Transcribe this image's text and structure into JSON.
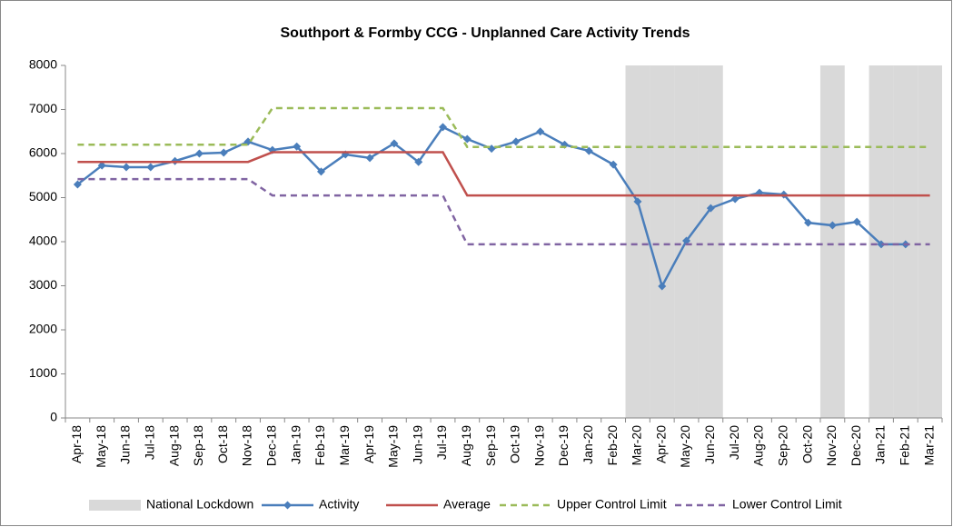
{
  "chart_data": {
    "type": "line",
    "title": "Southport & Formby CCG - Unplanned Care Activity Trends",
    "categories": [
      "Apr-18",
      "May-18",
      "Jun-18",
      "Jul-18",
      "Aug-18",
      "Sep-18",
      "Oct-18",
      "Nov-18",
      "Dec-18",
      "Jan-19",
      "Feb-19",
      "Mar-19",
      "Apr-19",
      "May-19",
      "Jun-19",
      "Jul-19",
      "Aug-19",
      "Sep-19",
      "Oct-19",
      "Nov-19",
      "Dec-19",
      "Jan-20",
      "Feb-20",
      "Mar-20",
      "Apr-20",
      "May-20",
      "Jun-20",
      "Jul-20",
      "Aug-20",
      "Sep-20",
      "Oct-20",
      "Nov-20",
      "Dec-20",
      "Jan-21",
      "Feb-21",
      "Mar-21"
    ],
    "series": [
      {
        "name": "National Lockdown",
        "type": "bar",
        "color": "#d9d9d9",
        "values": [
          null,
          null,
          null,
          null,
          null,
          null,
          null,
          null,
          null,
          null,
          null,
          null,
          null,
          null,
          null,
          null,
          null,
          null,
          null,
          null,
          null,
          null,
          null,
          8000,
          8000,
          8000,
          8000,
          null,
          null,
          null,
          null,
          8000,
          null,
          8000,
          8000,
          8000
        ]
      },
      {
        "name": "Activity",
        "type": "line",
        "color": "#4a7ebb",
        "marker": "diamond",
        "values": [
          5300,
          5730,
          5690,
          5690,
          5830,
          6000,
          6020,
          6270,
          6080,
          6160,
          5590,
          5980,
          5900,
          6230,
          5810,
          6600,
          6330,
          6110,
          6270,
          6500,
          6200,
          6060,
          5750,
          4910,
          2990,
          4020,
          4760,
          4970,
          5110,
          5070,
          4430,
          4370,
          4450,
          3940,
          3940,
          null
        ]
      },
      {
        "name": "Average",
        "type": "line",
        "color": "#c0504d",
        "values": [
          5810,
          5810,
          5810,
          5810,
          5810,
          5810,
          5810,
          5810,
          6030,
          6030,
          6030,
          6030,
          6030,
          6030,
          6030,
          6030,
          5050,
          5050,
          5050,
          5050,
          5050,
          5050,
          5050,
          5050,
          5050,
          5050,
          5050,
          5050,
          5050,
          5050,
          5050,
          5050,
          5050,
          5050,
          5050,
          5050
        ]
      },
      {
        "name": "Upper Control Limit",
        "type": "line",
        "color": "#9bbb59",
        "style": "dashed",
        "values": [
          6200,
          6200,
          6200,
          6200,
          6200,
          6200,
          6200,
          6200,
          7030,
          7030,
          7030,
          7030,
          7030,
          7030,
          7030,
          7030,
          6150,
          6150,
          6150,
          6150,
          6150,
          6150,
          6150,
          6150,
          6150,
          6150,
          6150,
          6150,
          6150,
          6150,
          6150,
          6150,
          6150,
          6150,
          6150,
          6150
        ]
      },
      {
        "name": "Lower Control Limit",
        "type": "line",
        "color": "#8064a2",
        "style": "dashed",
        "values": [
          5420,
          5420,
          5420,
          5420,
          5420,
          5420,
          5420,
          5420,
          5050,
          5050,
          5050,
          5050,
          5050,
          5050,
          5050,
          5050,
          3940,
          3940,
          3940,
          3940,
          3940,
          3940,
          3940,
          3940,
          3940,
          3940,
          3940,
          3940,
          3940,
          3940,
          3940,
          3940,
          3940,
          3940,
          3940,
          3940
        ]
      }
    ],
    "ylim": [
      0,
      8000
    ],
    "yticks": [
      0,
      1000,
      2000,
      3000,
      4000,
      5000,
      6000,
      7000,
      8000
    ],
    "legend": "bottom"
  }
}
